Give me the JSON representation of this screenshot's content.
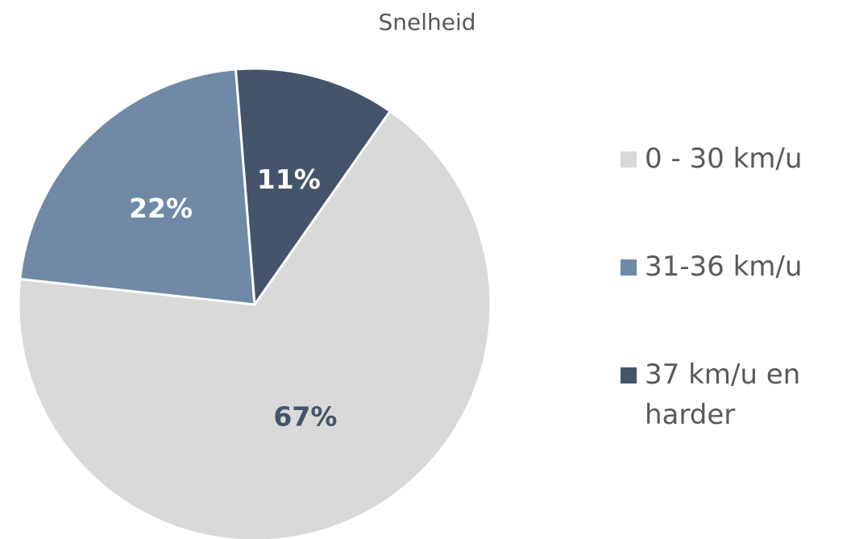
{
  "chart_data": {
    "type": "pie",
    "title": "Snelheid",
    "slices": [
      {
        "label": "0 - 30 km/u",
        "value": 67,
        "display": "67%",
        "color": "#d9d9d9",
        "label_color": "#44546a"
      },
      {
        "label": "31-36 km/u",
        "value": 22,
        "display": "22%",
        "color": "#6f89a6",
        "label_color": "#ffffff"
      },
      {
        "label": "37 km/u en harder",
        "value": 11,
        "display": "11%",
        "color": "#44546a",
        "label_color": "#ffffff"
      }
    ],
    "legend_position": "right"
  }
}
